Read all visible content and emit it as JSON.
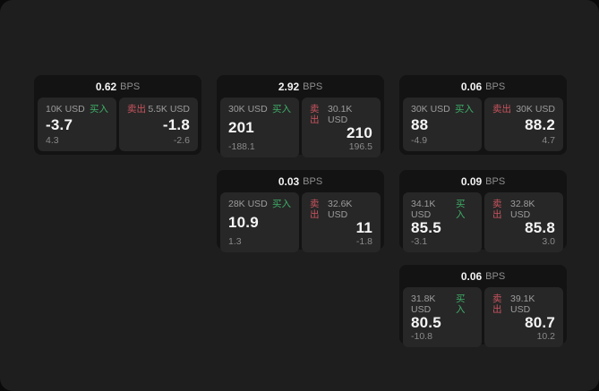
{
  "theme": {
    "outer_background": "#0a0a0a",
    "window_background": "#1e1e1e",
    "card_background": "#131313",
    "panel_background": "#272727",
    "buy_color": "#3fae68",
    "sell_color": "#c9545f",
    "value_color": "#f5f5f5",
    "muted_color": "#9c9c9c"
  },
  "labels": {
    "buy": "买入",
    "sell": "卖出",
    "bps_suffix": "BPS"
  },
  "cards": [
    {
      "bps": "0.62",
      "buy": {
        "size": "10K USD",
        "value": "-3.7",
        "sub": "4.3"
      },
      "sell": {
        "size": "5.5K USD",
        "value": "-1.8",
        "sub": "-2.6"
      }
    },
    {
      "bps": "2.92",
      "buy": {
        "size": "30K USD",
        "value": "201",
        "sub": "-188.1"
      },
      "sell": {
        "size": "30.1K USD",
        "value": "210",
        "sub": "196.5"
      }
    },
    {
      "bps": "0.06",
      "buy": {
        "size": "30K USD",
        "value": "88",
        "sub": "-4.9"
      },
      "sell": {
        "size": "30K USD",
        "value": "88.2",
        "sub": "4.7"
      }
    },
    {
      "bps": "0.03",
      "buy": {
        "size": "28K USD",
        "value": "10.9",
        "sub": "1.3"
      },
      "sell": {
        "size": "32.6K USD",
        "value": "11",
        "sub": "-1.8"
      }
    },
    {
      "bps": "0.09",
      "buy": {
        "size": "34.1K USD",
        "value": "85.5",
        "sub": "-3.1"
      },
      "sell": {
        "size": "32.8K USD",
        "value": "85.8",
        "sub": "3.0"
      }
    },
    {
      "bps": "0.06",
      "buy": {
        "size": "31.8K USD",
        "value": "80.5",
        "sub": "-10.8"
      },
      "sell": {
        "size": "39.1K USD",
        "value": "80.7",
        "sub": "10.2"
      }
    }
  ]
}
